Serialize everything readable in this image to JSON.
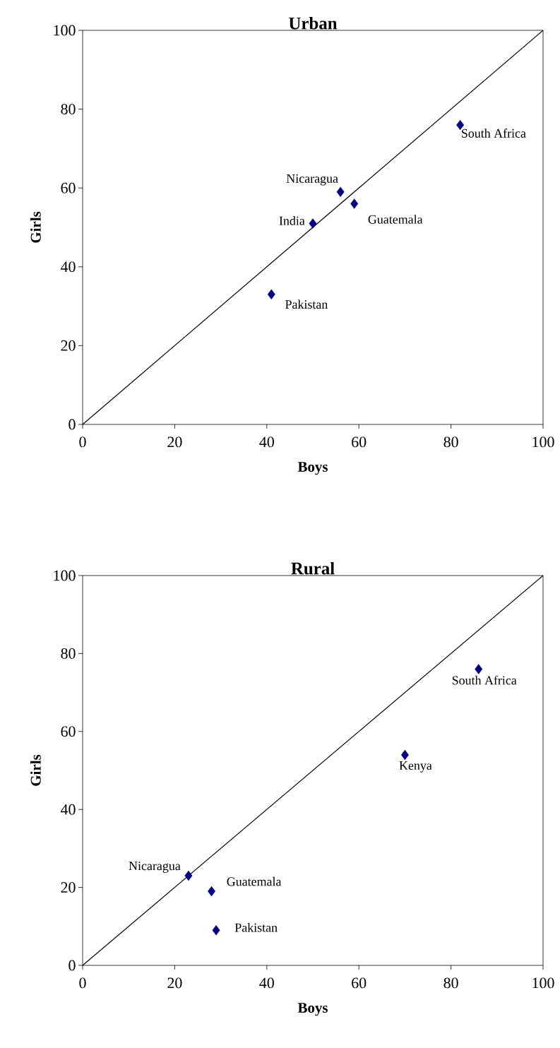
{
  "chart_data": [
    {
      "type": "scatter",
      "title": "Urban",
      "xlabel": "Boys",
      "ylabel": "Girls",
      "xlim": [
        0,
        100
      ],
      "ylim": [
        0,
        100
      ],
      "xticks": [
        0,
        20,
        40,
        60,
        80,
        100
      ],
      "yticks": [
        0,
        20,
        40,
        60,
        80,
        100
      ],
      "grid": false,
      "marker": "diamond",
      "series": [
        {
          "type": "scatter",
          "color": "#000080",
          "x": [
            82,
            56,
            59,
            50,
            41
          ],
          "values": [
            76,
            59,
            56,
            51,
            33
          ]
        },
        {
          "type": "line",
          "color": "#000000",
          "x": [
            0,
            100
          ],
          "values": [
            0,
            100
          ],
          "marker": "none",
          "line_style": "solid"
        }
      ],
      "annotations": [
        {
          "text": "South Africa",
          "x": 82,
          "y": 76
        },
        {
          "text": "Nicaragua",
          "x": 56,
          "y": 59
        },
        {
          "text": "Guatemala",
          "x": 59,
          "y": 56
        },
        {
          "text": "India",
          "x": 50,
          "y": 51
        },
        {
          "text": "Pakistan",
          "x": 41,
          "y": 33
        }
      ]
    },
    {
      "type": "scatter",
      "title": "Rural",
      "xlabel": "Boys",
      "ylabel": "Girls",
      "xlim": [
        0,
        100
      ],
      "ylim": [
        0,
        100
      ],
      "xticks": [
        0,
        20,
        40,
        60,
        80,
        100
      ],
      "yticks": [
        0,
        20,
        40,
        60,
        80,
        100
      ],
      "grid": false,
      "marker": "diamond",
      "series": [
        {
          "type": "scatter",
          "color": "#000080",
          "x": [
            86,
            70,
            23,
            28,
            29
          ],
          "values": [
            76,
            54,
            23,
            19,
            9
          ]
        },
        {
          "type": "line",
          "color": "#000000",
          "x": [
            0,
            100
          ],
          "values": [
            0,
            100
          ],
          "marker": "none",
          "line_style": "solid"
        }
      ],
      "annotations": [
        {
          "text": "South Africa",
          "x": 86,
          "y": 76
        },
        {
          "text": "Kenya",
          "x": 70,
          "y": 54
        },
        {
          "text": "Nicaragua",
          "x": 23,
          "y": 23
        },
        {
          "text": "Guatemala",
          "x": 28,
          "y": 19
        },
        {
          "text": "Pakistan",
          "x": 29,
          "y": 9
        }
      ]
    }
  ]
}
